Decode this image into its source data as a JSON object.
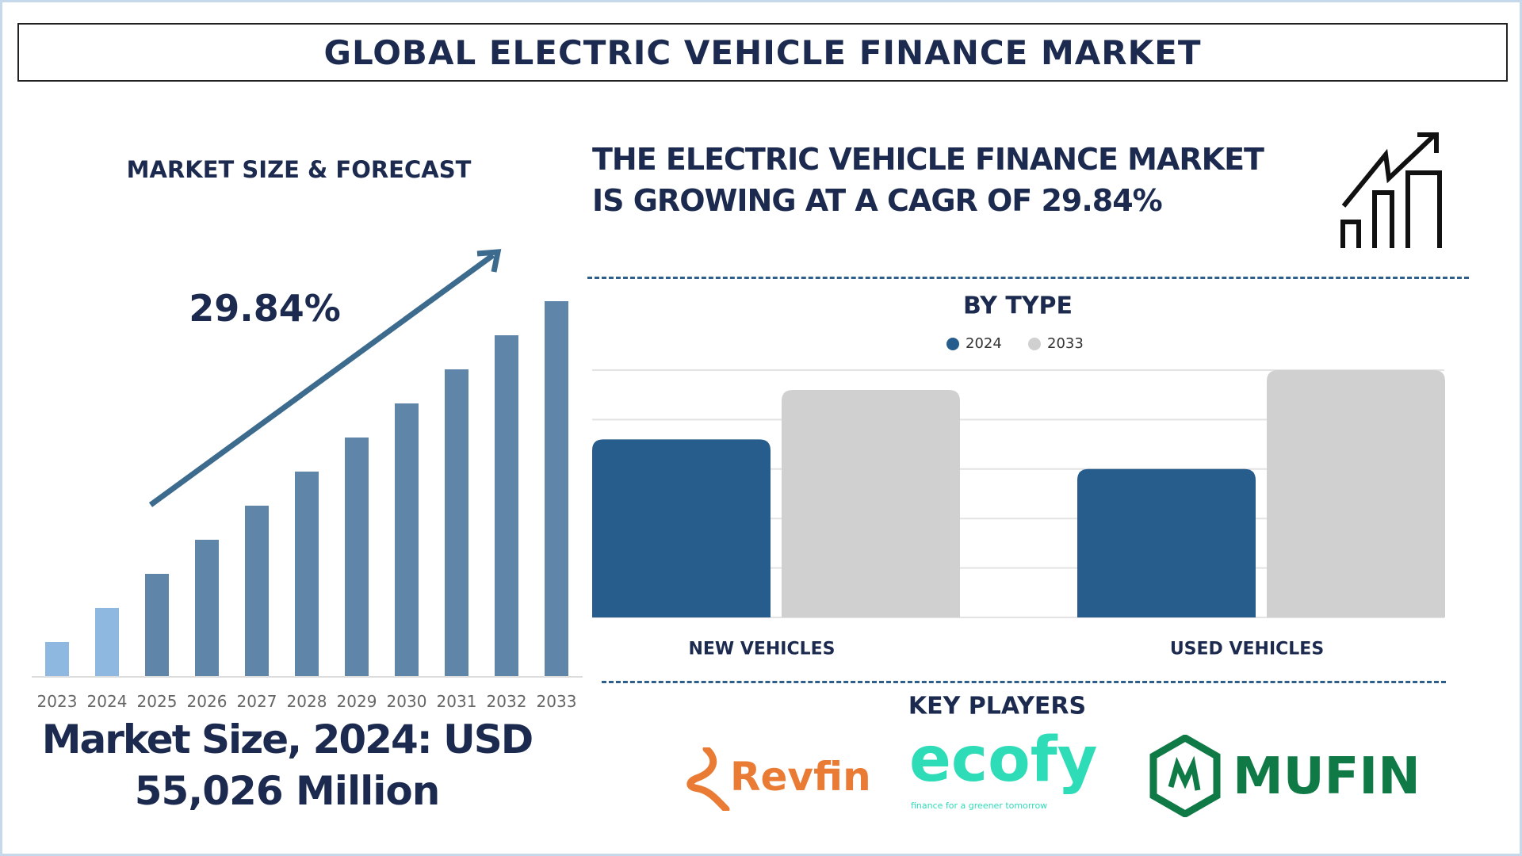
{
  "title": "GLOBAL ELECTRIC VEHICLE FINANCE MARKET",
  "left_panel": {
    "heading": "MARKET SIZE & FORECAST",
    "cagr_label": "29.84%",
    "market_size_line1": "Market Size, 2024: USD",
    "market_size_line2": "55,026 Million"
  },
  "headline": {
    "line1": "THE ELECTRIC VEHICLE FINANCE MARKET",
    "line2": "IS GROWING AT A CAGR OF 29.84%",
    "icon": "growth-chart-icon"
  },
  "key_players": {
    "heading": "KEY PLAYERS",
    "logos": [
      {
        "name": "Revfin",
        "color": "#ea7b35"
      },
      {
        "name": "ecofy",
        "tagline": "finance for a greener tomorrow",
        "color": "#2fdcb8"
      },
      {
        "name": "MUFIN",
        "color": "#0f7a45"
      }
    ]
  },
  "colors": {
    "navy": "#1b2a4e",
    "bar_history": "#8fb8e0",
    "bar_forecast": "#5f86a8",
    "arrow": "#3d6b8e",
    "series_2024": "#275d8c",
    "series_2033": "#d0d0d0",
    "dash": "#2e5f8a"
  },
  "chart_data": [
    {
      "type": "bar",
      "title": "",
      "categories": [
        "2023",
        "2024",
        "2025",
        "2026",
        "2027",
        "2028",
        "2029",
        "2030",
        "2031",
        "2032",
        "2033"
      ],
      "values": [
        1,
        2,
        3,
        4,
        5,
        6,
        7,
        8,
        9,
        10,
        11
      ],
      "ylim": [
        0,
        11
      ],
      "grid": false,
      "xlabel": "",
      "ylabel": "",
      "annotation": "29.84%"
    },
    {
      "type": "bar",
      "title": "BY TYPE",
      "categories": [
        "NEW VEHICLES",
        "USED VEHICLES"
      ],
      "series": [
        {
          "name": "2024",
          "values": [
            3.6,
            3.0
          ]
        },
        {
          "name": "2033",
          "values": [
            4.6,
            5.0
          ]
        }
      ],
      "ylim": [
        0,
        5
      ],
      "grid": true,
      "legend": "top-center",
      "xlabel": "",
      "ylabel": ""
    }
  ]
}
